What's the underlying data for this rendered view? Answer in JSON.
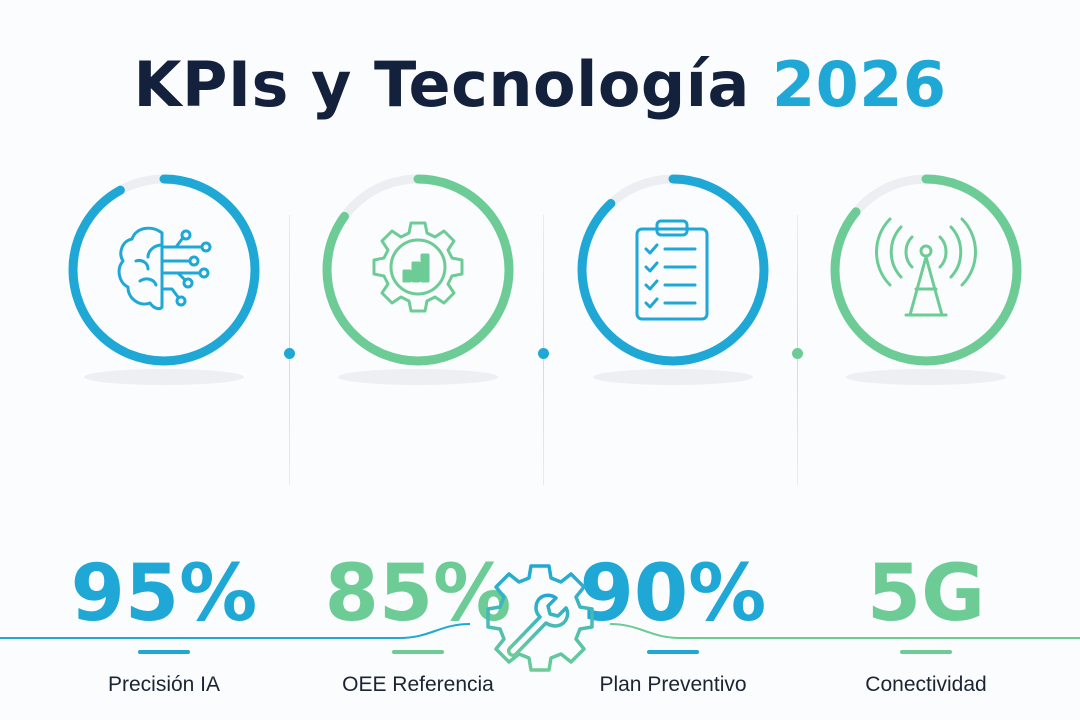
{
  "title": {
    "main": "KPIs y Tecnología",
    "year": "2026"
  },
  "colors": {
    "blue": "#1fa8d6",
    "green": "#6dcc96",
    "dark": "#14213d",
    "track": "#eceef1"
  },
  "kpis": [
    {
      "value": "95%",
      "label": "Precisión IA",
      "color": "#1fa8d6",
      "icon": "brain-circuit-icon",
      "progress": 0.92
    },
    {
      "value": "85%",
      "label": "OEE Referencia",
      "color": "#6dcc96",
      "icon": "gear-chart-icon",
      "progress": 0.85
    },
    {
      "value": "90%",
      "label": "Plan Preventivo",
      "color": "#1fa8d6",
      "icon": "clipboard-checklist-icon",
      "progress": 0.88
    },
    {
      "value": "5G",
      "label": "Conectividad",
      "color": "#6dcc96",
      "icon": "antenna-signal-icon",
      "progress": 0.86
    }
  ],
  "footer": {
    "icon": "gear-wrench-icon"
  }
}
